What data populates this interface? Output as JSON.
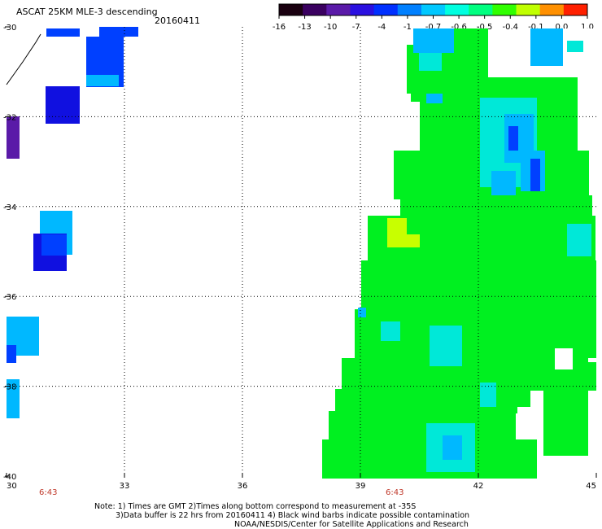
{
  "header": {
    "title": "ASCAT 25KM MLE-3 descending",
    "date": "20160411"
  },
  "colorbar": {
    "labels": [
      "-16",
      "-13",
      "-10",
      "-7",
      "-4",
      "-1",
      "-0.7",
      "-0.6",
      "-0.5",
      "-0.4",
      "-0.1",
      "0.0",
      "1.0"
    ],
    "colors": [
      "#1a0010",
      "#3a0060",
      "#5a1aa8",
      "#2a10e0",
      "#0030ff",
      "#0080ff",
      "#00c8ff",
      "#00ffe0",
      "#00ff80",
      "#30ff00",
      "#c0ff00",
      "#ff9000",
      "#ff2000"
    ]
  },
  "axes": {
    "lat_labels": [
      "-30",
      "-32",
      "-34",
      "-36",
      "-38",
      "-40"
    ],
    "lon_labels": [
      "30",
      "33",
      "36",
      "39",
      "42",
      "45"
    ]
  },
  "times": {
    "t1": "6:43",
    "t2": "6:43"
  },
  "notes": {
    "line1": "Note: 1) Times are GMT 2)Times along bottom correspond to measurement at -35S",
    "line2": "3)Data buffer is 22 hrs from 20160411 4) Black wind barbs indicate possible contamination",
    "line3": "NOAA/NESDIS/Center for Satellite Applications and Research"
  },
  "colors": {
    "green": "#00f020",
    "cyan": "#00e8d8",
    "skyblue": "#00b8ff",
    "blue": "#0040ff",
    "darkblue": "#1010e0",
    "purple": "#5a1aa8",
    "yellow": "#c8ff00"
  }
}
